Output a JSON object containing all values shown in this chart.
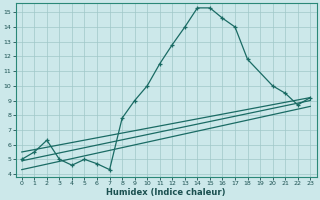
{
  "xlabel": "Humidex (Indice chaleur)",
  "bg_color": "#cce8ea",
  "grid_color": "#a0c8c8",
  "line_color": "#1a6b64",
  "xlim": [
    -0.5,
    23.5
  ],
  "ylim": [
    3.8,
    15.6
  ],
  "xticks": [
    0,
    1,
    2,
    3,
    4,
    5,
    6,
    7,
    8,
    9,
    10,
    11,
    12,
    13,
    14,
    15,
    16,
    17,
    18,
    19,
    20,
    21,
    22,
    23
  ],
  "yticks": [
    4,
    5,
    6,
    7,
    8,
    9,
    10,
    11,
    12,
    13,
    14,
    15
  ],
  "main_line_x": [
    0,
    1,
    2,
    3,
    4,
    5,
    6,
    7,
    8,
    9,
    10,
    11,
    12,
    13,
    14,
    15,
    16,
    17,
    18,
    20,
    21,
    22,
    23
  ],
  "main_line_y": [
    5,
    5.5,
    6.3,
    5.0,
    4.6,
    5.0,
    4.7,
    4.3,
    7.8,
    9.0,
    10.0,
    11.5,
    12.8,
    14.0,
    15.3,
    15.3,
    14.6,
    14.0,
    11.8,
    10.0,
    9.5,
    8.7,
    9.2
  ],
  "trend1_x": [
    0,
    23
  ],
  "trend1_y": [
    5.5,
    9.2
  ],
  "trend2_x": [
    0,
    23
  ],
  "trend2_y": [
    4.9,
    9.0
  ],
  "trend3_x": [
    0,
    23
  ],
  "trend3_y": [
    4.3,
    8.6
  ]
}
